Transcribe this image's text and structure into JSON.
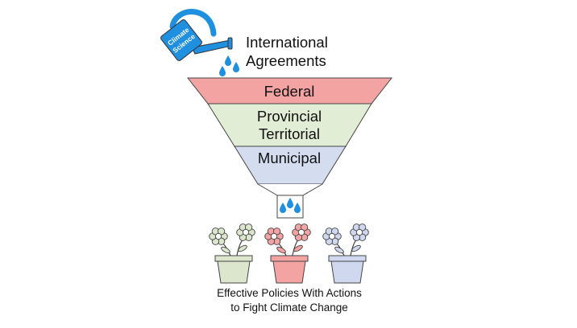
{
  "can_label": [
    "Climate",
    "Science"
  ],
  "top_label": [
    "International",
    "Agreements"
  ],
  "funnel_levels": [
    {
      "lines": [
        "Federal"
      ],
      "color": "#f4a3a3"
    },
    {
      "lines": [
        "Provincial",
        "Territorial"
      ],
      "color": "#e2edd5"
    },
    {
      "lines": [
        "Municipal"
      ],
      "color": "#d4dcef"
    }
  ],
  "pot_colors": [
    "#dbe6cc",
    "#f4a3a3",
    "#cfd8ee"
  ],
  "outcome": [
    "Effective Policies With Actions",
    "to Fight Climate Change"
  ],
  "colors": {
    "can": "#1f8fe0",
    "drop": "#1f8fe0",
    "outline": "#444444"
  }
}
